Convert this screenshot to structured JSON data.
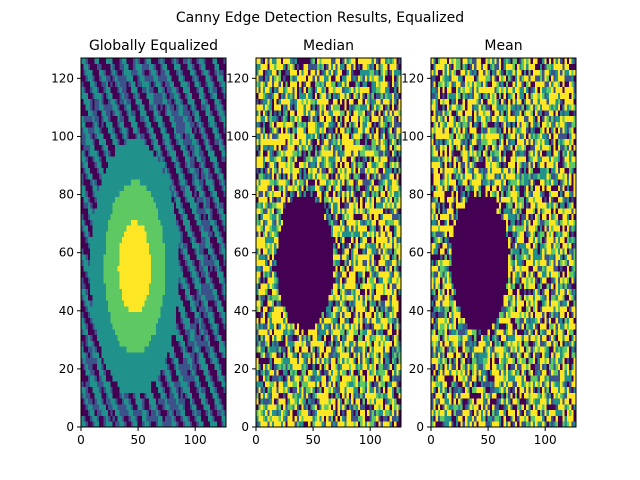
{
  "figure": {
    "title": "Canny Edge Detection Results, Equalized"
  },
  "chart_data": [
    {
      "type": "heatmap",
      "title": "Globally Equalized",
      "xlabel": "",
      "ylabel": "",
      "xlim": [
        0,
        127
      ],
      "ylim": [
        0,
        127
      ],
      "xticks": [
        0,
        50,
        100
      ],
      "yticks": [
        0,
        20,
        40,
        60,
        80,
        100,
        120
      ],
      "colormap": [
        "#440154",
        "#3b528b",
        "#21918c",
        "#5ec962",
        "#fde725"
      ]
    },
    {
      "type": "heatmap",
      "title": "Median",
      "xlabel": "",
      "ylabel": "",
      "xlim": [
        0,
        127
      ],
      "ylim": [
        0,
        127
      ],
      "xticks": [
        0,
        50,
        100
      ],
      "yticks": [
        0,
        20,
        40,
        60,
        80,
        100,
        120
      ],
      "colormap": [
        "#440154",
        "#3b528b",
        "#21918c",
        "#5ec962",
        "#fde725"
      ]
    },
    {
      "type": "heatmap",
      "title": "Mean",
      "xlabel": "",
      "ylabel": "",
      "xlim": [
        0,
        127
      ],
      "ylim": [
        0,
        127
      ],
      "xticks": [
        0,
        50,
        100
      ],
      "yticks": [
        0,
        20,
        40,
        60,
        80,
        100,
        120
      ],
      "colormap": [
        "#440154",
        "#3b528b",
        "#21918c",
        "#5ec962",
        "#fde725"
      ]
    }
  ]
}
